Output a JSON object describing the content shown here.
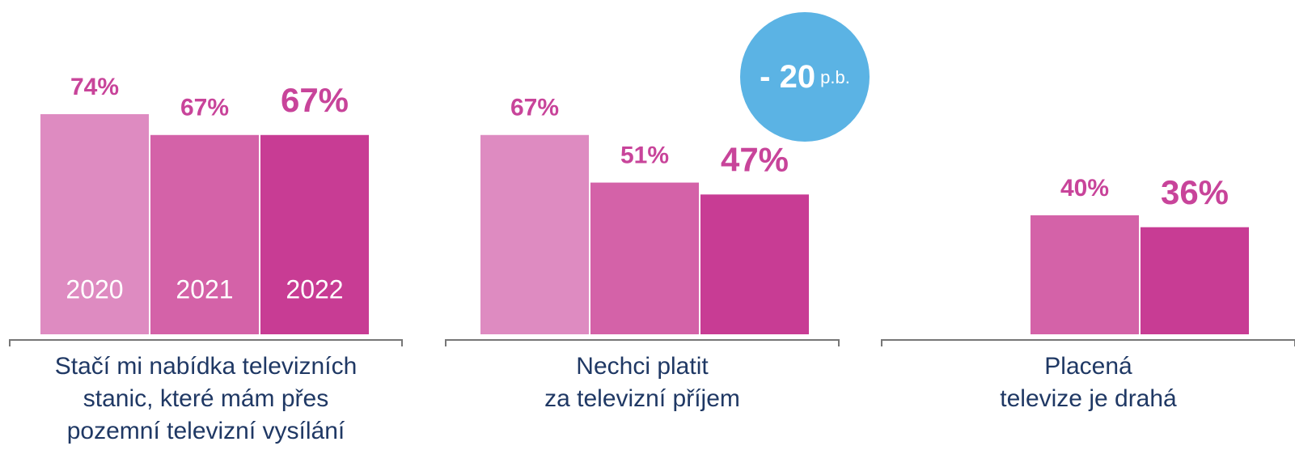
{
  "chart_data": {
    "type": "bar",
    "categories": [
      "Stačí mi nabídka televizních\nstanic, které mám přes\npozemní televizní vysílání",
      "Nechci platit\nza televizní příjem",
      "Placená\ntelevize je drahá"
    ],
    "series": [
      {
        "name": "2020",
        "color": "#de8bc1",
        "values": [
          74,
          67,
          null
        ],
        "value_labels": [
          "74%",
          "67%",
          null
        ]
      },
      {
        "name": "2021",
        "color": "#d462a8",
        "values": [
          67,
          51,
          40
        ],
        "value_labels": [
          "67%",
          "51%",
          "40%"
        ]
      },
      {
        "name": "2022",
        "color": "#c83c94",
        "values": [
          67,
          47,
          36
        ],
        "value_labels": [
          "67%",
          "47%",
          "36%"
        ]
      }
    ],
    "ylim": [
      0,
      80
    ],
    "annotation": {
      "text": "- 20",
      "unit": "p.b.",
      "color": "#5bb3e4"
    },
    "label_color": "#c8449a"
  }
}
